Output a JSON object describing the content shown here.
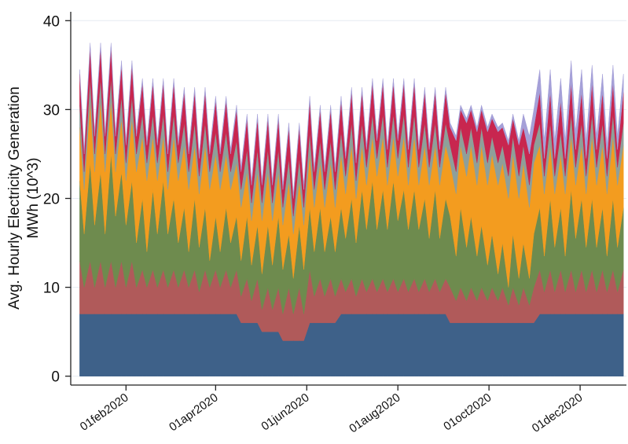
{
  "chart_data": {
    "type": "stacked-area",
    "ylabel": [
      "Avg. Hourly Electricity Generation",
      "MWh (10^3)"
    ],
    "xlim": [
      "2019-12-26",
      "2021-01-01"
    ],
    "ylim": [
      -1,
      41
    ],
    "yticks": [
      0,
      10,
      20,
      30,
      40
    ],
    "xticks": [
      {
        "value": "2020-02-01",
        "label": "01feb2020"
      },
      {
        "value": "2020-04-01",
        "label": "01apr2020"
      },
      {
        "value": "2020-06-01",
        "label": "01jun2020"
      },
      {
        "value": "2020-08-01",
        "label": "01aug2020"
      },
      {
        "value": "2020-10-01",
        "label": "01oct2020"
      },
      {
        "value": "2020-12-01",
        "label": "01dec2020"
      }
    ],
    "grid": true,
    "x": [
      "2020-01-01",
      "2020-01-04",
      "2020-01-08",
      "2020-01-11",
      "2020-01-15",
      "2020-01-18",
      "2020-01-22",
      "2020-01-25",
      "2020-01-29",
      "2020-02-01",
      "2020-02-05",
      "2020-02-08",
      "2020-02-12",
      "2020-02-15",
      "2020-02-19",
      "2020-02-22",
      "2020-02-26",
      "2020-02-29",
      "2020-03-04",
      "2020-03-07",
      "2020-03-11",
      "2020-03-14",
      "2020-03-18",
      "2020-03-21",
      "2020-03-25",
      "2020-03-28",
      "2020-04-01",
      "2020-04-04",
      "2020-04-08",
      "2020-04-11",
      "2020-04-15",
      "2020-04-18",
      "2020-04-22",
      "2020-04-25",
      "2020-04-29",
      "2020-05-02",
      "2020-05-06",
      "2020-05-09",
      "2020-05-13",
      "2020-05-16",
      "2020-05-20",
      "2020-05-23",
      "2020-05-27",
      "2020-05-30",
      "2020-06-03",
      "2020-06-06",
      "2020-06-10",
      "2020-06-13",
      "2020-06-17",
      "2020-06-20",
      "2020-06-24",
      "2020-06-27",
      "2020-07-01",
      "2020-07-04",
      "2020-07-08",
      "2020-07-11",
      "2020-07-15",
      "2020-07-18",
      "2020-07-22",
      "2020-07-25",
      "2020-07-29",
      "2020-08-01",
      "2020-08-05",
      "2020-08-08",
      "2020-08-12",
      "2020-08-15",
      "2020-08-19",
      "2020-08-22",
      "2020-08-26",
      "2020-08-29",
      "2020-09-02",
      "2020-09-05",
      "2020-09-09",
      "2020-09-12",
      "2020-09-16",
      "2020-09-19",
      "2020-09-23",
      "2020-09-26",
      "2020-09-30",
      "2020-10-03",
      "2020-10-07",
      "2020-10-10",
      "2020-10-14",
      "2020-10-17",
      "2020-10-21",
      "2020-10-24",
      "2020-10-28",
      "2020-10-31",
      "2020-11-04",
      "2020-11-07",
      "2020-11-11",
      "2020-11-14",
      "2020-11-18",
      "2020-11-21",
      "2020-11-25",
      "2020-11-28",
      "2020-12-02",
      "2020-12-05",
      "2020-12-09",
      "2020-12-12",
      "2020-12-16",
      "2020-12-19",
      "2020-12-23",
      "2020-12-26",
      "2020-12-30"
    ],
    "series": [
      {
        "color": "#3e6189",
        "values": [
          7,
          7,
          7,
          7,
          7,
          7,
          7,
          7,
          7,
          7,
          7,
          7,
          7,
          7,
          7,
          7,
          7,
          7,
          7,
          7,
          7,
          7,
          7,
          7,
          7,
          7,
          7,
          7,
          7,
          7,
          7,
          6,
          6,
          6,
          6,
          5,
          5,
          5,
          5,
          4,
          4,
          4,
          4,
          4,
          6,
          6,
          6,
          6,
          6,
          6,
          7,
          7,
          7,
          7,
          7,
          7,
          7,
          7,
          7,
          7,
          7,
          7,
          7,
          7,
          7,
          7,
          7,
          7,
          7,
          7,
          7,
          6,
          6,
          6,
          6,
          6,
          6,
          6,
          6,
          6,
          6,
          6,
          6,
          6,
          6,
          6,
          6,
          6,
          7,
          7,
          7,
          7,
          7,
          7,
          7,
          7,
          7,
          7,
          7,
          7,
          7,
          7,
          7,
          7,
          7
        ]
      },
      {
        "color": "#b05a5a",
        "values": [
          6,
          3,
          6,
          3,
          6,
          3,
          6,
          3,
          6,
          3,
          6,
          3,
          5,
          3,
          5,
          3,
          5,
          3,
          5,
          3,
          5,
          3,
          5,
          2.5,
          5,
          3,
          5,
          3,
          5,
          3,
          5,
          3,
          5,
          2.5,
          5,
          2.5,
          5,
          2.5,
          5,
          3,
          6,
          3,
          6,
          3,
          6,
          3,
          5,
          3,
          5,
          3,
          4,
          2.5,
          4,
          2,
          4,
          2.5,
          4,
          2.5,
          4,
          2.5,
          4,
          2.5,
          4,
          2.5,
          4,
          2.5,
          4,
          2.5,
          4,
          2.5,
          4,
          4,
          2.5,
          4,
          2.5,
          4,
          2.5,
          4,
          2.5,
          4,
          2.5,
          4,
          2,
          4,
          2,
          4,
          2,
          4,
          5,
          2.5,
          5,
          2.5,
          5,
          2.5,
          5,
          2.5,
          5,
          2.5,
          5,
          2.5,
          5,
          2.5,
          5,
          2.5,
          5
        ]
      },
      {
        "color": "#6e8b4e",
        "values": [
          9,
          6,
          11,
          7,
          10,
          6,
          12,
          8,
          10,
          7,
          9,
          5,
          8,
          4,
          9,
          6,
          10,
          6,
          8,
          5,
          7,
          4,
          8,
          5,
          7,
          3,
          6,
          4,
          7,
          5,
          6,
          4,
          7,
          4,
          6,
          4,
          7,
          5,
          8,
          5,
          6,
          4,
          7,
          5,
          7,
          5,
          8,
          5,
          7,
          5,
          8,
          6,
          9,
          6,
          10,
          7,
          11,
          7,
          10,
          7,
          11,
          8,
          10,
          7,
          10,
          7,
          9,
          6,
          10,
          6,
          9,
          8,
          5,
          9,
          6,
          8,
          5,
          7,
          4,
          6,
          3,
          5,
          2,
          6,
          3,
          5,
          3,
          6,
          7,
          4,
          8,
          5,
          7,
          4,
          9,
          6,
          8,
          5,
          8,
          5,
          7,
          4,
          8,
          5,
          7
        ]
      },
      {
        "color": "#f39c1f",
        "values": [
          6,
          5,
          7,
          6,
          8,
          7,
          6,
          5,
          6,
          5,
          7,
          8,
          7,
          8,
          6,
          6,
          5,
          5,
          7,
          7,
          7,
          7,
          6,
          6,
          7,
          8,
          7,
          7,
          6,
          6,
          6,
          6,
          5,
          5,
          6,
          6,
          6,
          5,
          5,
          5,
          6,
          5,
          5,
          5,
          6,
          5,
          5,
          5,
          6,
          5,
          6,
          5,
          6,
          5,
          5,
          5,
          5,
          6,
          6,
          5,
          5,
          5,
          6,
          5,
          6,
          5,
          6,
          6,
          5,
          6,
          6,
          6,
          7,
          7,
          8,
          8,
          8,
          9,
          9,
          9,
          10,
          9,
          10,
          9,
          9,
          9,
          8,
          8,
          7,
          7,
          6,
          6,
          6,
          7,
          6,
          6,
          6,
          6,
          7,
          7,
          7,
          7,
          7,
          7,
          7
        ]
      },
      {
        "color": "#8e9f9a",
        "values": [
          2.5,
          2,
          2.5,
          2,
          2.5,
          2,
          2.5,
          2,
          2.5,
          2,
          2.5,
          2,
          2.5,
          2,
          2.5,
          2,
          2.5,
          2,
          2.5,
          2,
          2.5,
          2,
          2.5,
          2,
          2.5,
          2,
          2.5,
          2,
          2.5,
          2,
          2.5,
          2,
          2.5,
          2,
          2.5,
          2,
          2.5,
          2,
          2.5,
          2,
          2.5,
          2,
          2.5,
          2,
          2.5,
          2,
          2.5,
          2,
          2.5,
          2,
          2.5,
          2,
          2.5,
          2,
          2.5,
          2,
          2.5,
          2,
          2.5,
          2,
          2.5,
          2,
          2.5,
          2,
          2.5,
          2,
          2.5,
          2,
          2.5,
          2,
          2.5,
          2,
          2.5,
          2,
          2.5,
          2,
          2.5,
          2,
          2.5,
          2,
          2.5,
          2,
          2.5,
          2,
          2.5,
          2,
          2.5,
          2,
          2.5,
          2,
          2.5,
          2,
          2.5,
          2,
          2.5,
          2,
          2.5,
          2,
          2.5,
          2,
          2.5,
          2,
          2.5,
          2,
          2.5
        ]
      },
      {
        "color": "#c8264f",
        "values": [
          3.5,
          2,
          3.5,
          2,
          3.5,
          2,
          3.5,
          2,
          3.5,
          2,
          3.5,
          2,
          3.5,
          2,
          3.5,
          2,
          3.5,
          2,
          3.5,
          2,
          3.5,
          2,
          3.5,
          2,
          3.5,
          2,
          3.5,
          2,
          3.5,
          2,
          3.5,
          2,
          3.5,
          2,
          3.5,
          2,
          3.5,
          2,
          3.5,
          2,
          3.5,
          2,
          3.5,
          2,
          3.5,
          2,
          3.5,
          2,
          3.5,
          2,
          3.5,
          2,
          3.5,
          2,
          3.5,
          2,
          3.5,
          2,
          3.5,
          2,
          3.5,
          2,
          3.5,
          2,
          3.5,
          2,
          3.5,
          2,
          3.5,
          2,
          3.5,
          2,
          3.5,
          2,
          3.5,
          2,
          3.5,
          2,
          3.5,
          2,
          3.5,
          2,
          3.5,
          2,
          3.5,
          2,
          3.5,
          2,
          3.5,
          2,
          3.5,
          2,
          3.5,
          2,
          3.5,
          2,
          3.5,
          2,
          3.5,
          2,
          3.5,
          2,
          3.5,
          2,
          3.5
        ]
      },
      {
        "color": "#a5a0d8",
        "values": [
          0.5,
          0.5,
          0.5,
          0.5,
          0.5,
          0.5,
          0.5,
          0.5,
          0.5,
          0.5,
          0.5,
          0.5,
          0.5,
          0.5,
          0.5,
          0.5,
          0.5,
          0.5,
          0.5,
          0.5,
          0.5,
          0.5,
          0.5,
          0.5,
          0.5,
          0.5,
          0.5,
          0.5,
          0.5,
          0.5,
          0.5,
          0.5,
          0.5,
          0.5,
          0.5,
          0.5,
          0.5,
          0.5,
          0.5,
          0.5,
          0.5,
          0.5,
          0.5,
          0.5,
          0.5,
          0.5,
          0.5,
          0.5,
          0.5,
          0.5,
          0.5,
          0.5,
          0.5,
          0.5,
          0.5,
          0.5,
          0.5,
          0.5,
          0.5,
          0.5,
          0.5,
          0.5,
          0.5,
          0.5,
          0.5,
          0.5,
          0.5,
          0.5,
          0.5,
          0.5,
          0.5,
          0.5,
          0.5,
          0.5,
          0.5,
          0.5,
          0.5,
          0.5,
          0.5,
          0.5,
          0.5,
          0.5,
          0.5,
          0.5,
          0.5,
          1.5,
          2,
          2,
          2.5,
          2,
          2.5,
          2,
          2.5,
          2,
          2.5,
          2,
          2.5,
          2,
          2,
          1.5,
          2,
          1.5,
          2,
          1.5,
          2
        ]
      }
    ]
  }
}
